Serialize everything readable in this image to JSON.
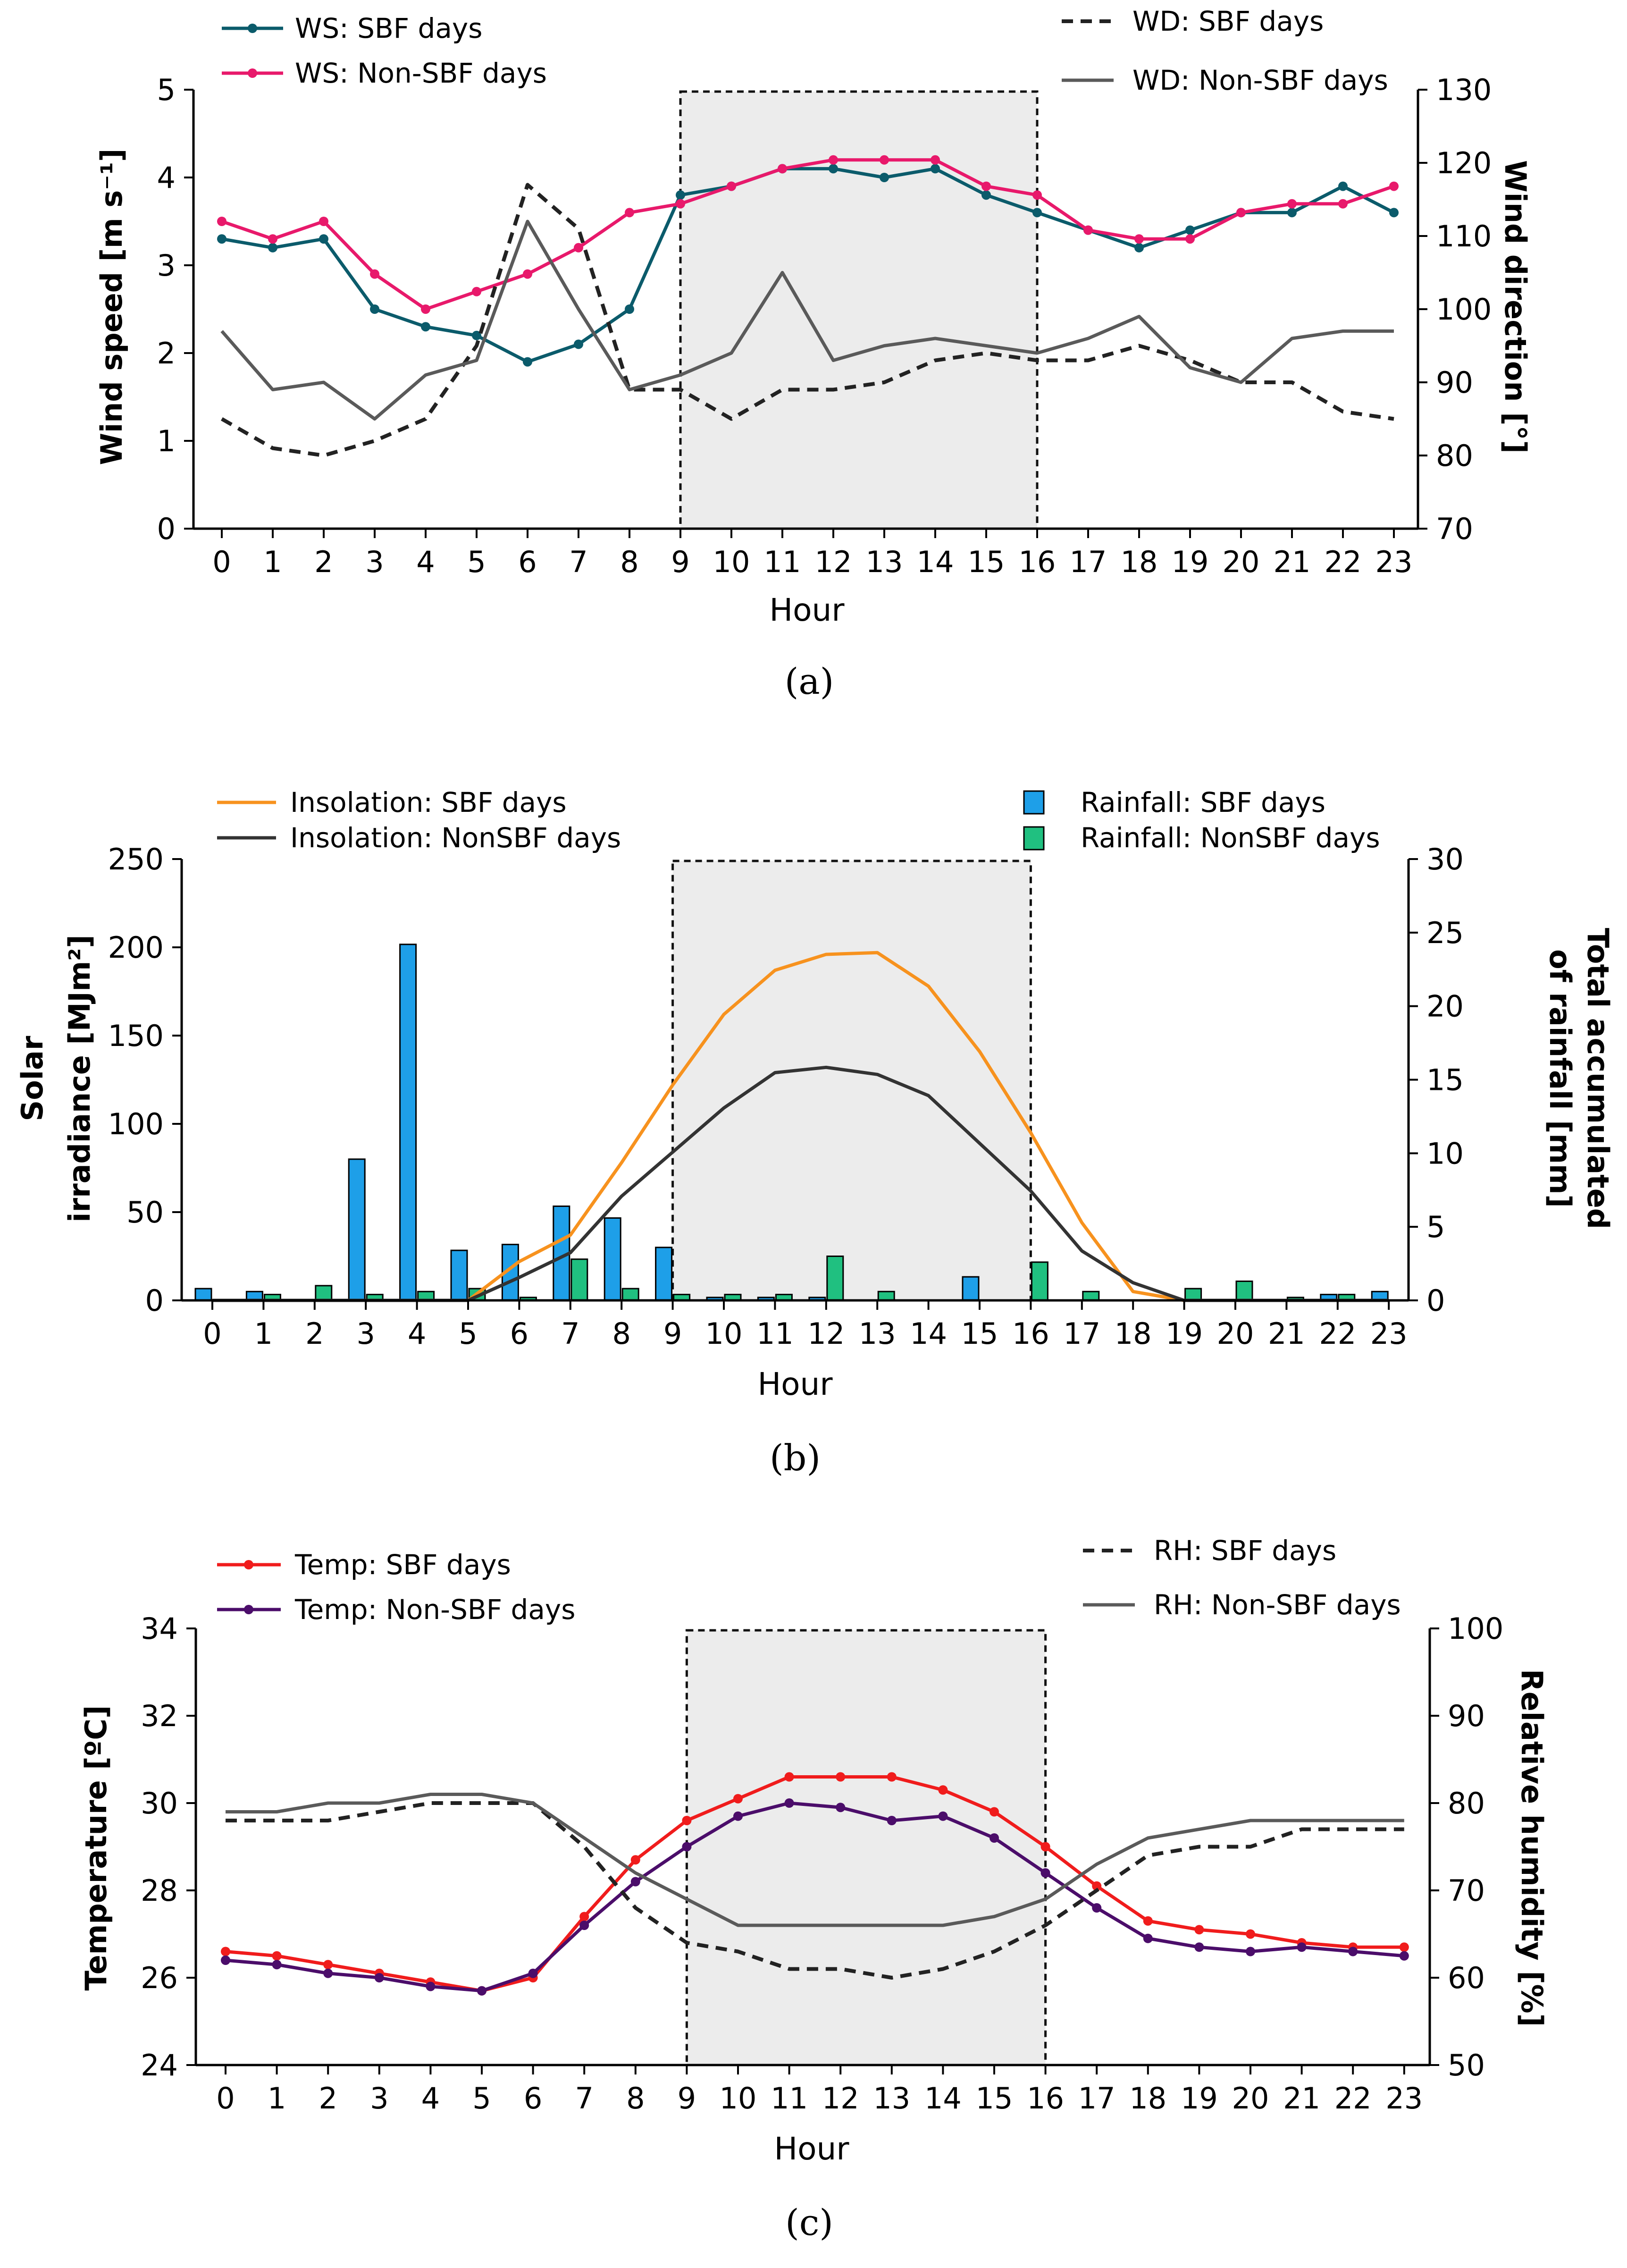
{
  "chart_data": [
    {
      "id": "a",
      "type": "line",
      "caption": "(a)",
      "xlabel": "Hour",
      "ylabel_left": "Wind speed [m s⁻¹]",
      "ylabel_right": "Wind direction [°]",
      "categories": [
        "0",
        "1",
        "2",
        "3",
        "4",
        "5",
        "6",
        "7",
        "8",
        "9",
        "10",
        "11",
        "12",
        "13",
        "14",
        "15",
        "16",
        "17",
        "18",
        "19",
        "20",
        "21",
        "22",
        "23"
      ],
      "ylim_left": [
        0,
        5
      ],
      "yticks_left": [
        "0",
        "1",
        "2",
        "3",
        "4",
        "5"
      ],
      "ylim_right": [
        70,
        130
      ],
      "yticks_right": [
        "70",
        "80",
        "90",
        "100",
        "110",
        "120",
        "130"
      ],
      "highlight": [
        9,
        16
      ],
      "series": [
        {
          "name": "WS: SBF days",
          "axis": "left",
          "style": "marker",
          "color": "#0b5b6b",
          "values": [
            3.3,
            3.2,
            3.3,
            2.5,
            2.3,
            2.2,
            1.9,
            2.1,
            2.5,
            3.8,
            3.9,
            4.1,
            4.1,
            4.0,
            4.1,
            3.8,
            3.6,
            3.4,
            3.2,
            3.4,
            3.6,
            3.6,
            3.9,
            3.6
          ]
        },
        {
          "name": "WS: Non-SBF days",
          "axis": "left",
          "style": "marker",
          "color": "#e8196b",
          "values": [
            3.5,
            3.3,
            3.5,
            2.9,
            2.5,
            2.7,
            2.9,
            3.2,
            3.6,
            3.7,
            3.9,
            4.1,
            4.2,
            4.2,
            4.2,
            3.9,
            3.8,
            3.4,
            3.3,
            3.3,
            3.6,
            3.7,
            3.7,
            3.9
          ]
        },
        {
          "name": "WD: SBF days",
          "axis": "right",
          "style": "dashed",
          "color": "#222222",
          "values": [
            85,
            81,
            80,
            82,
            85,
            95,
            117,
            111,
            89,
            89,
            85,
            89,
            89,
            90,
            93,
            94,
            93,
            93,
            95,
            93,
            90,
            90,
            86,
            85
          ]
        },
        {
          "name": "WD: Non-SBF days",
          "axis": "right",
          "style": "solid",
          "color": "#5a5a5a",
          "values": [
            97,
            89,
            90,
            85,
            91,
            93,
            112,
            100,
            89,
            91,
            94,
            105,
            93,
            95,
            96,
            95,
            94,
            96,
            99,
            92,
            90,
            96,
            97,
            97
          ]
        }
      ]
    },
    {
      "id": "b",
      "type": "bar+line",
      "caption": "(b)",
      "xlabel": "Hour",
      "ylabel_left_line1": "Solar",
      "ylabel_left_line2": "irradiance [MJm²]",
      "ylabel_right_line1": "Total accumulated",
      "ylabel_right_line2": "of rainfall [mm]",
      "categories": [
        "0",
        "1",
        "2",
        "3",
        "4",
        "5",
        "6",
        "7",
        "8",
        "9",
        "10",
        "11",
        "12",
        "13",
        "14",
        "15",
        "16",
        "17",
        "18",
        "19",
        "20",
        "21",
        "22",
        "23"
      ],
      "ylim_left": [
        0,
        250
      ],
      "yticks_left": [
        "0",
        "50",
        "100",
        "150",
        "200",
        "250"
      ],
      "ylim_right": [
        0,
        30
      ],
      "yticks_right": [
        "0",
        "5",
        "10",
        "15",
        "20",
        "25",
        "30"
      ],
      "highlight": [
        9,
        16
      ],
      "lines": [
        {
          "name": "Insolation: SBF days",
          "axis": "left",
          "color": "#f7921e",
          "values": [
            0,
            0,
            0,
            0,
            0,
            0,
            22,
            37,
            78,
            122,
            162,
            187,
            196,
            197,
            178,
            141,
            95,
            44,
            5,
            0,
            0,
            0,
            0,
            0
          ]
        },
        {
          "name": "Insolation: NonSBF days",
          "axis": "left",
          "color": "#333333",
          "values": [
            0,
            0,
            0,
            0,
            0,
            0,
            13,
            27,
            59,
            84,
            109,
            129,
            132,
            128,
            116,
            89,
            62,
            28,
            10,
            0,
            0,
            0,
            0,
            0
          ]
        }
      ],
      "bars": [
        {
          "name": "Rainfall: SBF days",
          "axis": "right",
          "color": "#1e9fe8",
          "values": [
            0.8,
            0.6,
            0,
            9.6,
            24.2,
            3.4,
            3.8,
            6.4,
            5.6,
            3.6,
            0.2,
            0.2,
            0.2,
            0,
            0,
            1.6,
            0,
            0,
            0,
            0,
            0,
            0,
            0.4,
            0.6
          ]
        },
        {
          "name": "Rainfall: NonSBF days",
          "axis": "right",
          "color": "#20c080",
          "values": [
            0,
            0.4,
            1.0,
            0.4,
            0.6,
            0.8,
            0.2,
            2.8,
            0.8,
            0.4,
            0.4,
            0.4,
            3.0,
            0.6,
            0,
            0,
            2.6,
            0.6,
            0,
            0.8,
            1.3,
            0.2,
            0.4,
            0
          ]
        }
      ]
    },
    {
      "id": "c",
      "type": "line",
      "caption": "(c)",
      "xlabel": "Hour",
      "ylabel_left": "Temperature [ºC]",
      "ylabel_right": "Relative humidity [%]",
      "categories": [
        "0",
        "1",
        "2",
        "3",
        "4",
        "5",
        "6",
        "7",
        "8",
        "9",
        "10",
        "11",
        "12",
        "13",
        "14",
        "15",
        "16",
        "17",
        "18",
        "19",
        "20",
        "21",
        "22",
        "23"
      ],
      "ylim_left": [
        24,
        34
      ],
      "yticks_left": [
        "24",
        "26",
        "28",
        "30",
        "32",
        "34"
      ],
      "ylim_right": [
        50,
        100
      ],
      "yticks_right": [
        "50",
        "60",
        "70",
        "80",
        "90",
        "100"
      ],
      "highlight": [
        9,
        16
      ],
      "series": [
        {
          "name": "Temp: SBF days",
          "axis": "left",
          "style": "marker",
          "color": "#f01c1c",
          "values": [
            26.6,
            26.5,
            26.3,
            26.1,
            25.9,
            25.7,
            26.0,
            27.4,
            28.7,
            29.6,
            30.1,
            30.6,
            30.6,
            30.6,
            30.3,
            29.8,
            29.0,
            28.1,
            27.3,
            27.1,
            27.0,
            26.8,
            26.7,
            26.7
          ]
        },
        {
          "name": "Temp: Non-SBF days",
          "axis": "left",
          "style": "marker",
          "color": "#4b0d6a",
          "values": [
            26.4,
            26.3,
            26.1,
            26.0,
            25.8,
            25.7,
            26.1,
            27.2,
            28.2,
            29.0,
            29.7,
            30.0,
            29.9,
            29.6,
            29.7,
            29.2,
            28.4,
            27.6,
            26.9,
            26.7,
            26.6,
            26.7,
            26.6,
            26.5
          ]
        },
        {
          "name": "RH: SBF days",
          "axis": "right",
          "style": "dashed",
          "color": "#222222",
          "values": [
            78,
            78,
            78,
            79,
            80,
            80,
            80,
            75,
            68,
            64,
            63,
            61,
            61,
            60,
            61,
            63,
            66,
            70,
            74,
            75,
            75,
            77,
            77,
            77
          ]
        },
        {
          "name": "RH: Non-SBF days",
          "axis": "right",
          "style": "solid",
          "color": "#5a5a5a",
          "values": [
            79,
            79,
            80,
            80,
            81,
            81,
            80,
            76,
            72,
            69,
            66,
            66,
            66,
            66,
            66,
            67,
            69,
            73,
            76,
            77,
            78,
            78,
            78,
            78
          ]
        }
      ]
    }
  ]
}
